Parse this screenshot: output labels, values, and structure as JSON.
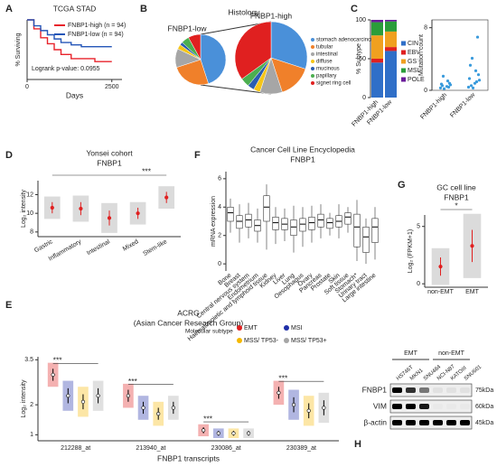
{
  "chart_data": [
    {
      "panel": "A",
      "type": "line",
      "title": "TCGA STAD",
      "xlabel": "Days",
      "ylabel": "% Surviving",
      "xlim": [
        0,
        2800
      ],
      "xticks": [
        0,
        2500
      ],
      "ylim": [
        0,
        100
      ],
      "series": [
        {
          "name": "FNBP1-high (n = 94)",
          "color": "#e8232b",
          "x": [
            0,
            200,
            400,
            600,
            800,
            1000,
            1300,
            1600,
            2000,
            2500
          ],
          "values": [
            100,
            85,
            70,
            60,
            50,
            42,
            35,
            35,
            30,
            30
          ]
        },
        {
          "name": "FNBP1-low (n = 94)",
          "color": "#2456b8",
          "x": [
            0,
            200,
            400,
            600,
            800,
            1000,
            1300,
            1600,
            2000,
            2500
          ],
          "values": [
            100,
            90,
            82,
            75,
            68,
            62,
            58,
            55,
            55,
            55
          ]
        }
      ],
      "annotation": "Logrank p-value: 0.0955"
    },
    {
      "panel": "B",
      "type": "pie",
      "title": "Histology",
      "categories": [
        "stomach adenocarcinoma",
        "tubular",
        "intestinal",
        "diffuse",
        "mucinous",
        "papillary",
        "signet ring cell"
      ],
      "colors": [
        "#4a90d9",
        "#f0802a",
        "#a6a6a6",
        "#f5c518",
        "#2a5db0",
        "#4caf50",
        "#e02020"
      ],
      "series": [
        {
          "name": "FNBP1-low",
          "values": [
            45,
            25,
            12,
            3,
            2,
            5,
            8
          ]
        },
        {
          "name": "FNBP1-high",
          "values": [
            30,
            15,
            10,
            3,
            3,
            4,
            35
          ]
        }
      ]
    },
    {
      "panel": "C",
      "type": "stacked_bar",
      "ylabel": "% Subtype",
      "categories": [
        "FNBP1-high",
        "FNBP1-low"
      ],
      "ylim": [
        0,
        100
      ],
      "yticks": [
        0,
        50,
        100
      ],
      "series": [
        {
          "name": "CIN",
          "color": "#2f6fc8",
          "values": [
            45,
            60
          ]
        },
        {
          "name": "EBV",
          "color": "#e02020",
          "values": [
            5,
            5
          ]
        },
        {
          "name": "GS",
          "color": "#f0a020",
          "values": [
            30,
            20
          ]
        },
        {
          "name": "MSI",
          "color": "#2a9d3a",
          "values": [
            17,
            13
          ]
        },
        {
          "name": "POLE",
          "color": "#6a1b9a",
          "values": [
            3,
            2
          ]
        }
      ]
    },
    {
      "type": "scatter",
      "ylabel": "Mutation count",
      "categories": [
        "FNBP1-high",
        "FNBP1-low"
      ],
      "ylim": [
        0,
        9
      ],
      "yticks": [
        0,
        8
      ],
      "color": "#3a9bdc",
      "values": [
        [
          0.3,
          0.5,
          0.8,
          1.2,
          0.6,
          0.4,
          1.8,
          0.9,
          0.2,
          0.7
        ],
        [
          0.4,
          0.9,
          1.5,
          2.5,
          3.2,
          1.1,
          0.6,
          6.8,
          4.1,
          2.0,
          0.3,
          1.3
        ]
      ]
    },
    {
      "panel": "D",
      "type": "dot_error",
      "title": "Yonsei cohort",
      "subtitle": "FNBP1",
      "ylabel": "Log₂ intensity",
      "categories": [
        "Gastric",
        "Inflammatory",
        "Intestinal",
        "Mixed",
        "Stem-like"
      ],
      "values": [
        10.6,
        10.5,
        9.5,
        10.0,
        11.7
      ],
      "errors": [
        0.6,
        0.7,
        0.8,
        0.6,
        0.6
      ],
      "ylim": [
        7.5,
        13.5
      ],
      "yticks": [
        8,
        10,
        12
      ],
      "annotation": "***",
      "color": "#e02020"
    },
    {
      "panel": "E",
      "type": "dot_error",
      "title": "ACRG",
      "subtitle": "(Asian Cancer Research Group)",
      "ylabel": "Log₂ intensity",
      "xlabel": "FNBP1 transcripts",
      "legend_title": "Molecular subtype",
      "categories": [
        "212288_at",
        "213940_at",
        "230086_at",
        "230389_at"
      ],
      "ylim": [
        0.8,
        3.6
      ],
      "yticks": [
        1,
        2,
        3.5
      ],
      "annotation": "***",
      "series": [
        {
          "name": "EMT",
          "color": "#e02020",
          "values": [
            3.0,
            2.3,
            1.15,
            2.4
          ],
          "errors": [
            0.2,
            0.2,
            0.1,
            0.2
          ]
        },
        {
          "name": "MSI",
          "color": "#1f2fa8",
          "values": [
            2.3,
            1.9,
            1.05,
            2.0
          ],
          "errors": [
            0.25,
            0.2,
            0.08,
            0.25
          ]
        },
        {
          "name": "MSS/ TP53-",
          "color": "#f5b800",
          "values": [
            2.1,
            1.7,
            1.05,
            1.8
          ],
          "errors": [
            0.25,
            0.2,
            0.08,
            0.25
          ]
        },
        {
          "name": "MSS/ TP53+",
          "color": "#a6a6a6",
          "values": [
            2.3,
            1.9,
            1.05,
            1.9
          ],
          "errors": [
            0.25,
            0.2,
            0.08,
            0.25
          ]
        }
      ]
    },
    {
      "panel": "F",
      "type": "box",
      "title": "Cancer Cell Line Encyclopedia",
      "subtitle": "FNBP1",
      "ylabel": "mRNA expression",
      "ylim": [
        -0.5,
        6.5
      ],
      "yticks": [
        0,
        2,
        4,
        6
      ],
      "categories": [
        "Bone",
        "Breast",
        "Central nervous system",
        "Endometrium",
        "Haematopoietic and lymphoid tissue",
        "Kidney",
        "Liver",
        "Lung",
        "Oesophagus",
        "Ovary",
        "Pancreas",
        "Prostate",
        "Skin",
        "Soft tissue",
        "Stomach*",
        "Urinary tract",
        "Large intestine"
      ],
      "q1": [
        3.0,
        2.5,
        2.6,
        2.3,
        3.0,
        2.4,
        2.4,
        2.0,
        2.3,
        2.4,
        2.6,
        2.5,
        2.6,
        2.8,
        1.2,
        0.8,
        1.5
      ],
      "median": [
        3.6,
        3.0,
        3.1,
        2.7,
        4.0,
        2.9,
        2.8,
        2.6,
        2.8,
        2.9,
        3.1,
        2.9,
        3.0,
        3.3,
        2.6,
        1.9,
        2.6
      ],
      "q3": [
        4.0,
        3.4,
        3.5,
        3.1,
        4.8,
        3.3,
        3.2,
        3.1,
        3.2,
        3.3,
        3.5,
        3.2,
        3.4,
        3.6,
        3.5,
        2.6,
        3.2
      ],
      "lower": [
        2.2,
        1.5,
        1.8,
        1.5,
        1.0,
        1.4,
        1.6,
        0.8,
        1.2,
        1.5,
        1.8,
        2.0,
        1.8,
        2.2,
        0.2,
        0,
        0.3
      ],
      "upper": [
        4.6,
        4.2,
        4.3,
        3.9,
        5.6,
        4.0,
        3.9,
        4.1,
        4.0,
        4.1,
        4.2,
        3.6,
        4.2,
        4.0,
        4.5,
        3.2,
        4.0
      ]
    },
    {
      "panel": "G",
      "type": "dot_error",
      "title": "GC cell line",
      "subtitle": "FNBP1",
      "ylabel": "Log₂ (FPKM+1)",
      "categories": [
        "non-EMT",
        "EMT"
      ],
      "values": [
        1.5,
        3.3
      ],
      "errors": [
        0.8,
        1.4
      ],
      "ylim": [
        -0.3,
        6
      ],
      "yticks": [
        0,
        5
      ],
      "annotation": "*",
      "color": "#e02020"
    }
  ],
  "blot": {
    "panel": "H",
    "lanes": [
      "HS746T",
      "MKN1",
      "SNU484",
      "NCI-N87",
      "KATOIII",
      "SNU601"
    ],
    "groups": [
      "EMT",
      "non-EMT"
    ],
    "rows": [
      "FNBP1",
      "VIM",
      "β-actin"
    ],
    "markers": [
      "75kDa",
      "60kDa",
      "45kDa"
    ]
  }
}
